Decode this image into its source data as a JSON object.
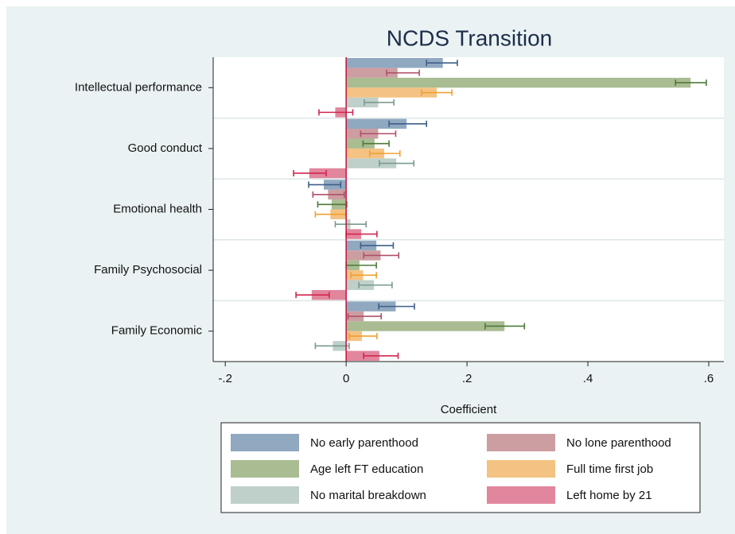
{
  "chart_data": {
    "type": "bar",
    "orientation": "horizontal",
    "title": "NCDS Transition",
    "xlabel": "Coefficient",
    "categories": [
      "Intellectual performance",
      "Good conduct",
      "Emotional health",
      "Family Psychosocial",
      "Family Economic"
    ],
    "xlim": [
      -0.22,
      0.625
    ],
    "xticks": [
      {
        "value": -0.2,
        "label": "-.2"
      },
      0,
      {
        "value": 0.2,
        "label": ".2"
      },
      {
        "value": 0.4,
        "label": ".4"
      },
      {
        "value": 0.6,
        "label": ".6"
      }
    ],
    "series": [
      {
        "name": "No early parenthood",
        "color": "#90a8c0",
        "error_color": "#3e5f8a",
        "values": [
          0.16,
          0.1,
          -0.037,
          0.05,
          0.082
        ],
        "lower": [
          0.133,
          0.071,
          -0.062,
          0.024,
          0.054
        ],
        "upper": [
          0.184,
          0.133,
          -0.009,
          0.078,
          0.113
        ]
      },
      {
        "name": "No lone parenthood",
        "color": "#cc9da1",
        "error_color": "#b05068",
        "values": [
          0.085,
          0.053,
          -0.03,
          0.057,
          0.029
        ],
        "lower": [
          0.067,
          0.024,
          -0.055,
          0.029,
          0.003
        ],
        "upper": [
          0.121,
          0.082,
          -0.003,
          0.087,
          0.058
        ]
      },
      {
        "name": "Age left FT education",
        "color": "#a9bc92",
        "error_color": "#4e7a3a",
        "values": [
          0.57,
          0.047,
          -0.024,
          0.022,
          0.262
        ],
        "lower": [
          0.545,
          0.028,
          -0.047,
          0.0,
          0.23
        ],
        "upper": [
          0.596,
          0.071,
          0.001,
          0.05,
          0.295
        ]
      },
      {
        "name": "Full time first job",
        "color": "#f4c282",
        "error_color": "#f0a030",
        "values": [
          0.15,
          0.063,
          -0.026,
          0.028,
          0.026
        ],
        "lower": [
          0.125,
          0.039,
          -0.051,
          0.008,
          0.005
        ],
        "upper": [
          0.175,
          0.089,
          0.0,
          0.05,
          0.051
        ]
      },
      {
        "name": "No marital breakdown",
        "color": "#bfd0ca",
        "error_color": "#7a9a90",
        "values": [
          0.053,
          0.083,
          0.007,
          0.046,
          -0.022
        ],
        "lower": [
          0.03,
          0.055,
          -0.018,
          0.021,
          -0.051
        ],
        "upper": [
          0.079,
          0.112,
          0.033,
          0.076,
          0.005
        ]
      },
      {
        "name": "Left home by 21",
        "color": "#e2869d",
        "error_color": "#d2264f",
        "values": [
          -0.018,
          -0.061,
          0.025,
          -0.057,
          0.055
        ],
        "lower": [
          -0.045,
          -0.087,
          0.0,
          -0.083,
          0.029
        ],
        "upper": [
          0.011,
          -0.033,
          0.051,
          -0.028,
          0.086
        ]
      }
    ]
  }
}
